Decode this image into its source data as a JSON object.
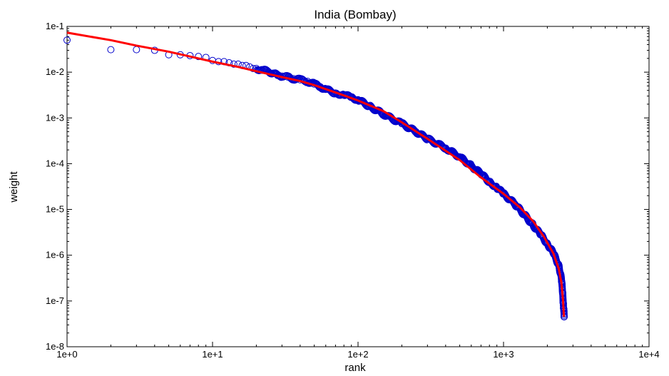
{
  "chart_data": {
    "type": "scatter",
    "title": "India (Bombay)",
    "xlabel": "rank",
    "ylabel": "weight",
    "x_scale": "log",
    "y_scale": "log",
    "xlim": [
      1,
      10000
    ],
    "ylim": [
      1e-08,
      0.1
    ],
    "x_tick_labels": [
      "1e+0",
      "1e+1",
      "1e+2",
      "1e+3",
      "1e+4"
    ],
    "y_tick_labels": [
      "1e-1",
      "1e-2",
      "1e-3",
      "1e-4",
      "1e-5",
      "1e-6",
      "1e-7",
      "1e-8"
    ],
    "grid": false,
    "legend": "none",
    "series": [
      {
        "marker": "open-circle",
        "color": "#0000cc",
        "points": [
          [
            1,
            0.05
          ],
          [
            2,
            0.031
          ],
          [
            3,
            0.031
          ],
          [
            4,
            0.03
          ],
          [
            5,
            0.024
          ],
          [
            6,
            0.024
          ],
          [
            7,
            0.023
          ],
          [
            8,
            0.022
          ],
          [
            9,
            0.021
          ],
          [
            10,
            0.018
          ],
          [
            11,
            0.017
          ],
          [
            12,
            0.017
          ],
          [
            13,
            0.016
          ],
          [
            14,
            0.015
          ],
          [
            15,
            0.015
          ],
          [
            16,
            0.014
          ],
          [
            17,
            0.014
          ],
          [
            18,
            0.013
          ],
          [
            19,
            0.012
          ],
          [
            20,
            0.012
          ],
          [
            22,
            0.011
          ],
          [
            24,
            0.0105
          ],
          [
            26,
            0.0095
          ],
          [
            28,
            0.0085
          ],
          [
            30,
            0.0082
          ],
          [
            33,
            0.0078
          ],
          [
            36,
            0.0072
          ],
          [
            40,
            0.0068
          ],
          [
            45,
            0.0063
          ],
          [
            50,
            0.0055
          ],
          [
            55,
            0.0048
          ],
          [
            60,
            0.0042
          ],
          [
            70,
            0.0035
          ],
          [
            80,
            0.0032
          ],
          [
            90,
            0.0028
          ],
          [
            100,
            0.0025
          ],
          [
            120,
            0.0018
          ],
          [
            150,
            0.0012
          ],
          [
            200,
            0.00075
          ],
          [
            250,
            0.0005
          ],
          [
            300,
            0.00035
          ],
          [
            400,
            0.00022
          ],
          [
            500,
            0.00014
          ],
          [
            600,
            9e-05
          ],
          [
            700,
            6e-05
          ],
          [
            800,
            4e-05
          ],
          [
            900,
            3e-05
          ],
          [
            1000,
            2.2e-05
          ],
          [
            1200,
            1.3e-05
          ],
          [
            1400,
            7.5e-06
          ],
          [
            1600,
            4.5e-06
          ],
          [
            1800,
            2.8e-06
          ],
          [
            2000,
            1.8e-06
          ],
          [
            2200,
            1.1e-06
          ],
          [
            2400,
            6e-07
          ],
          [
            2500,
            3e-07
          ],
          [
            2550,
            1.5e-07
          ],
          [
            2580,
            8e-08
          ],
          [
            2600,
            6e-08
          ],
          [
            2610,
            4.5e-08
          ]
        ]
      },
      {
        "marker": "line",
        "color": "#ff0000",
        "points": [
          [
            1,
            0.073
          ],
          [
            2,
            0.05
          ],
          [
            3,
            0.038
          ],
          [
            5,
            0.028
          ],
          [
            7,
            0.022
          ],
          [
            10,
            0.017
          ],
          [
            15,
            0.013
          ],
          [
            20,
            0.0105
          ],
          [
            30,
            0.0078
          ],
          [
            40,
            0.0064
          ],
          [
            50,
            0.0052
          ],
          [
            70,
            0.0036
          ],
          [
            100,
            0.0024
          ],
          [
            150,
            0.0014
          ],
          [
            200,
            0.0008
          ],
          [
            300,
            0.00035
          ],
          [
            500,
            0.00012
          ],
          [
            700,
            5e-05
          ],
          [
            1000,
            2.2e-05
          ],
          [
            1300,
            1.1e-05
          ],
          [
            1600,
            5.5e-06
          ],
          [
            1900,
            2.5e-06
          ],
          [
            2200,
            1.1e-06
          ],
          [
            2400,
            5e-07
          ],
          [
            2500,
            2.5e-07
          ],
          [
            2560,
            1.1e-07
          ],
          [
            2590,
            6e-08
          ],
          [
            2600,
            4.5e-08
          ]
        ]
      }
    ]
  }
}
